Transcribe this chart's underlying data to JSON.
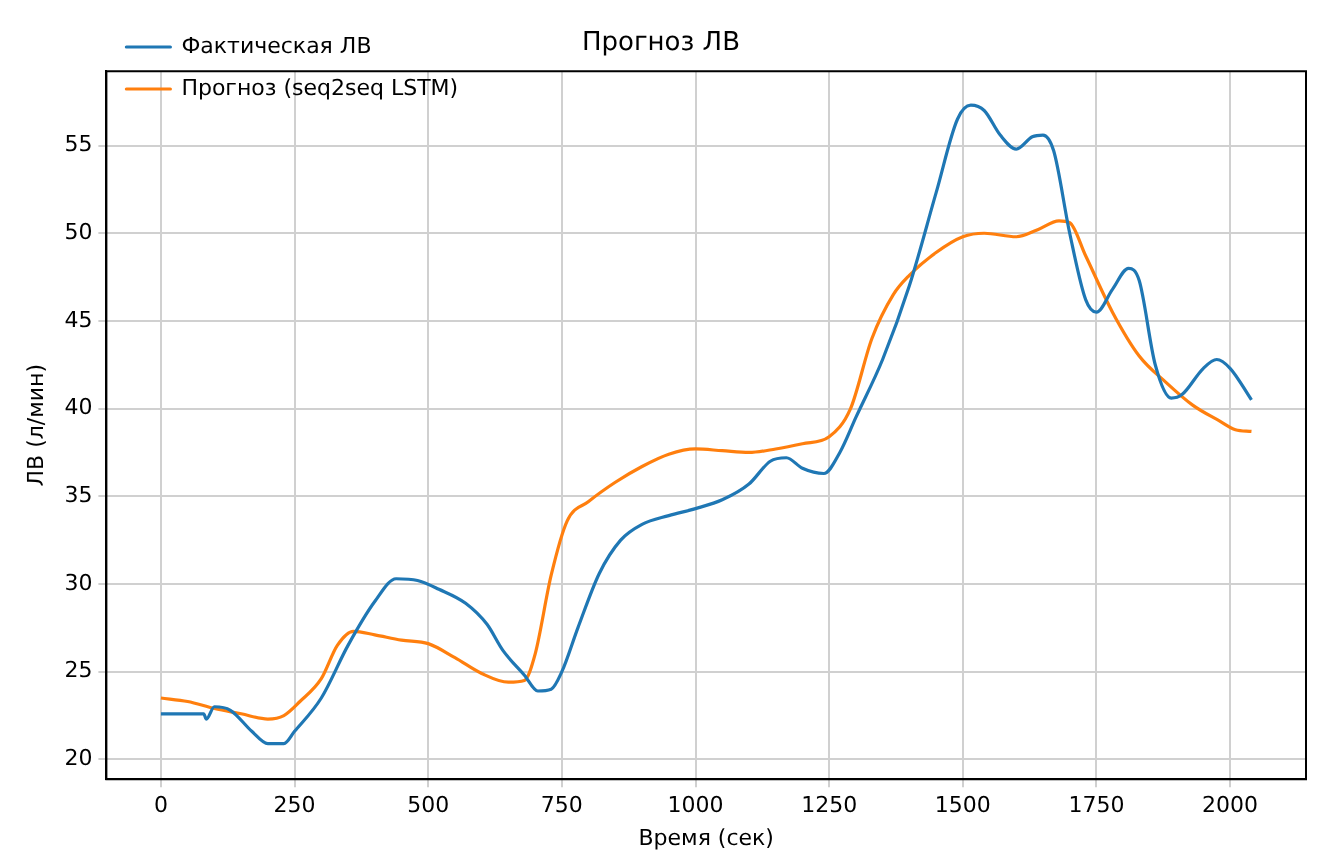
{
  "chart_data": {
    "type": "line",
    "title": "Прогноз ЛВ",
    "xlabel": "Время (сек)",
    "ylabel": "ЛВ (л/мин)",
    "xlim": [
      -102,
      2142
    ],
    "xticks": [
      0,
      250,
      500,
      750,
      1000,
      1250,
      1500,
      1750,
      2000
    ],
    "ylim": [
      18.87,
      59.24
    ],
    "yticks": [
      20,
      25,
      30,
      35,
      40,
      45,
      50,
      55
    ],
    "grid": true,
    "legend": "top left",
    "marker": "none",
    "line_style": "solid",
    "series": [
      {
        "name": "Фактическая ЛВ",
        "color": "#1f77b4",
        "x": [
          0,
          50,
          80,
          85,
          100,
          130,
          170,
          200,
          230,
          250,
          300,
          350,
          400,
          440,
          480,
          520,
          570,
          610,
          640,
          680,
          705,
          730,
          750,
          780,
          820,
          860,
          900,
          950,
          1000,
          1050,
          1100,
          1140,
          1170,
          1200,
          1240,
          1270,
          1300,
          1350,
          1400,
          1450,
          1490,
          1515,
          1540,
          1570,
          1600,
          1630,
          1650,
          1670,
          1700,
          1730,
          1750,
          1780,
          1810,
          1830,
          1860,
          1890,
          1910,
          1950,
          1975,
          2000,
          2040
        ],
        "values": [
          22.6,
          22.6,
          22.6,
          22.3,
          23.0,
          22.8,
          21.6,
          20.9,
          20.9,
          21.6,
          23.5,
          26.5,
          29.0,
          30.3,
          30.2,
          29.7,
          28.9,
          27.7,
          26.2,
          24.8,
          23.9,
          24.0,
          25.0,
          27.5,
          30.6,
          32.5,
          33.4,
          33.9,
          34.3,
          34.8,
          35.7,
          37.0,
          37.2,
          36.6,
          36.3,
          37.5,
          39.5,
          42.8,
          47.0,
          52.3,
          56.5,
          57.3,
          57.0,
          55.6,
          54.8,
          55.5,
          55.6,
          54.7,
          50.0,
          46.2,
          45.5,
          46.8,
          48.0,
          47.3,
          42.5,
          40.6,
          40.8,
          42.3,
          42.8,
          42.3,
          40.5
        ]
      },
      {
        "name": "Прогноз (seq2seq LSTM)",
        "color": "#ff7f0e",
        "x": [
          0,
          50,
          100,
          150,
          200,
          230,
          260,
          300,
          330,
          360,
          400,
          450,
          500,
          550,
          600,
          650,
          680,
          700,
          730,
          760,
          800,
          850,
          900,
          950,
          1000,
          1050,
          1100,
          1150,
          1200,
          1250,
          1290,
          1330,
          1370,
          1400,
          1450,
          1500,
          1540,
          1600,
          1640,
          1680,
          1700,
          1730,
          1780,
          1830,
          1880,
          1930,
          1980,
          2010,
          2040
        ],
        "values": [
          23.5,
          23.3,
          22.9,
          22.6,
          22.3,
          22.5,
          23.3,
          24.6,
          26.5,
          27.3,
          27.1,
          26.8,
          26.6,
          25.8,
          24.9,
          24.4,
          24.5,
          26.0,
          30.5,
          33.6,
          34.7,
          35.8,
          36.7,
          37.4,
          37.7,
          37.6,
          37.5,
          37.7,
          38.0,
          38.4,
          40.0,
          44.0,
          46.5,
          47.6,
          48.9,
          49.8,
          50.0,
          49.8,
          50.2,
          50.7,
          50.6,
          48.7,
          45.5,
          43.0,
          41.5,
          40.2,
          39.3,
          38.8,
          38.7
        ]
      }
    ]
  }
}
